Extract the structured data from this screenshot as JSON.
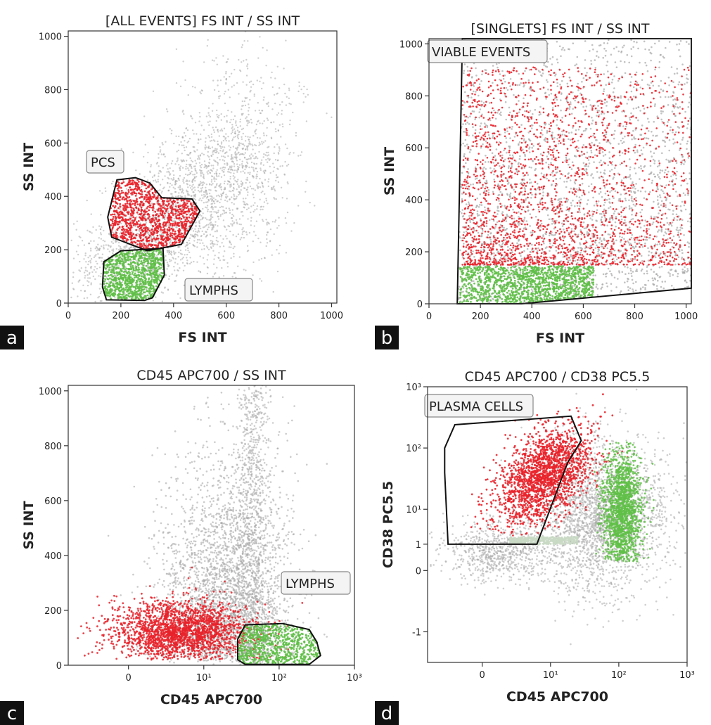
{
  "chart_data": [
    {
      "panel": "a",
      "type": "scatter",
      "title": "[ALL EVENTS] FS INT / SS INT",
      "xlabel": "FS INT",
      "ylabel": "SS INT",
      "xlim": [
        0,
        1020
      ],
      "ylim": [
        0,
        1020
      ],
      "xticks": [
        "0",
        "200",
        "400",
        "600",
        "800",
        "1000"
      ],
      "yticks": [
        "0",
        "200",
        "400",
        "600",
        "800",
        "1000"
      ],
      "colors": {
        "background": "#a8a8a8",
        "pcs": "#e8222a",
        "lymphs": "#5fbf47"
      },
      "gates": [
        {
          "name": "PCS",
          "polygon": [
            [
              185,
              462
            ],
            [
              255,
              470
            ],
            [
              270,
              465
            ],
            [
              310,
              450
            ],
            [
              355,
              395
            ],
            [
              470,
              390
            ],
            [
              500,
              345
            ],
            [
              430,
              220
            ],
            [
              300,
              196
            ],
            [
              165,
              247
            ],
            [
              150,
              322
            ]
          ]
        },
        {
          "name": "LYMPHS",
          "polygon": [
            [
              135,
              155
            ],
            [
              200,
              196
            ],
            [
              360,
              205
            ],
            [
              365,
              105
            ],
            [
              320,
              20
            ],
            [
              290,
              10
            ],
            [
              145,
              12
            ],
            [
              130,
              60
            ]
          ]
        }
      ]
    },
    {
      "panel": "b",
      "type": "scatter",
      "title": "[SINGLETS] FS INT / SS INT",
      "xlabel": "FS INT",
      "ylabel": "SS INT",
      "xlim": [
        0,
        1020
      ],
      "ylim": [
        0,
        1020
      ],
      "xticks": [
        "0",
        "200",
        "400",
        "600",
        "800",
        "1000"
      ],
      "yticks": [
        "0",
        "200",
        "400",
        "600",
        "800",
        "1000"
      ],
      "colors": {
        "background": "#a8a8a8",
        "pcs": "#e8222a",
        "lymphs": "#5fbf47"
      },
      "gates": [
        {
          "name": "VIABLE EVENTS",
          "polygon": [
            [
              130,
              1020
            ],
            [
              1020,
              1020
            ],
            [
              1020,
              60
            ],
            [
              360,
              0
            ],
            [
              110,
              0
            ]
          ]
        }
      ]
    },
    {
      "panel": "c",
      "type": "scatter",
      "title": "CD45 APC700 / SS INT",
      "xlabel": "CD45 APC700",
      "ylabel": "SS INT",
      "xlim": [
        -0.8,
        3.0
      ],
      "ylim": [
        0,
        1020
      ],
      "xticks": [
        "0",
        "10¹",
        "10²",
        "10³"
      ],
      "yticks": [
        "0",
        "200",
        "400",
        "600",
        "800",
        "1000"
      ],
      "colors": {
        "background": "#a8a8a8",
        "pcs": "#e8222a",
        "lymphs": "#5fbf47"
      },
      "gates": [
        {
          "name": "LYMPHS",
          "polygon": [
            [
              1.55,
              147
            ],
            [
              2.05,
              152
            ],
            [
              2.4,
              130
            ],
            [
              2.5,
              85
            ],
            [
              2.55,
              35
            ],
            [
              2.4,
              3
            ],
            [
              1.55,
              3
            ],
            [
              1.45,
              20
            ],
            [
              1.45,
              95
            ]
          ]
        }
      ]
    },
    {
      "panel": "d",
      "type": "scatter",
      "title": "CD45 APC700 / CD38 PC5.5",
      "xlabel": "CD45 APC700",
      "ylabel": "CD38 PC5.5",
      "xlim": [
        -0.8,
        3.0
      ],
      "ylim": [
        -1.5,
        3.0
      ],
      "xticks": [
        "0",
        "10¹",
        "10²",
        "10³"
      ],
      "yticks": [
        "-1",
        "0",
        "1",
        "10¹",
        "10²",
        "10³"
      ],
      "colors": {
        "background": "#a8a8a8",
        "pcs": "#e8222a",
        "lymphs": "#5fbf47"
      },
      "gates": [
        {
          "name": "PLASMA CELLS",
          "polygon": [
            [
              -0.55,
              2.0
            ],
            [
              -0.4,
              2.38
            ],
            [
              1.3,
              2.52
            ],
            [
              1.45,
              2.12
            ],
            [
              1.25,
              1.76
            ],
            [
              0.8,
              0.43
            ],
            [
              -0.5,
              0.43
            ],
            [
              -0.55,
              1.6
            ]
          ]
        }
      ]
    }
  ],
  "panel_labels": [
    "a",
    "b",
    "c",
    "d"
  ]
}
